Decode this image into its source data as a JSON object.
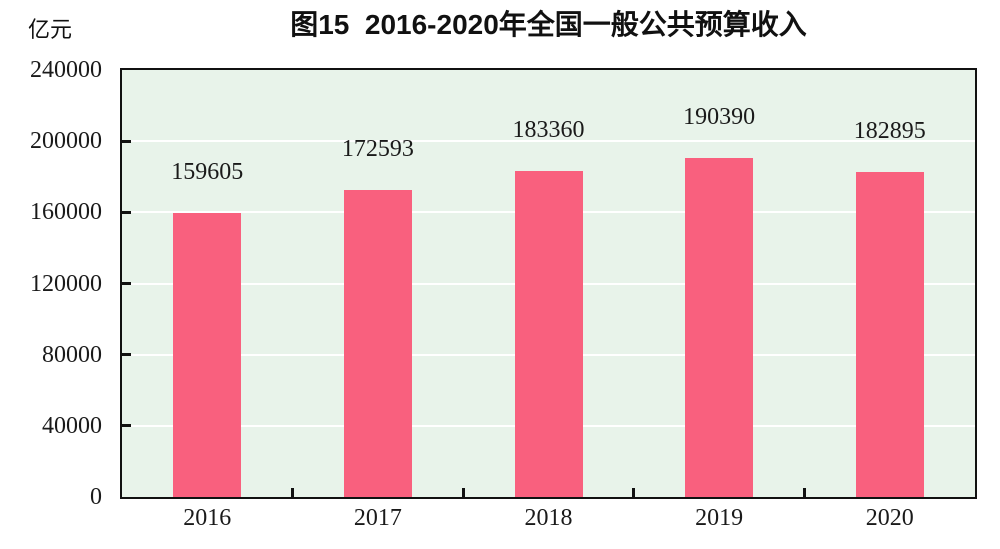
{
  "figure": {
    "title": "图15  2016-2020年全国一般公共预算收入",
    "unit_label": "亿元"
  },
  "chart_data": {
    "type": "bar",
    "title": "图15 2016-2020年全国一般公共预算收入",
    "unit": "亿元",
    "categories": [
      "2016",
      "2017",
      "2018",
      "2019",
      "2020"
    ],
    "values": [
      159605,
      172593,
      183360,
      190390,
      182895
    ],
    "value_labels_shown": true,
    "ylim": [
      0,
      240000
    ],
    "ytick_interval": 40000,
    "yticks": [
      0,
      40000,
      80000,
      120000,
      160000,
      200000,
      240000
    ],
    "xlabel": "",
    "ylabel": "亿元",
    "grid": true,
    "legend_position": "none",
    "colors": {
      "bar": "#f9607e",
      "plot_background": "#e8f3ea",
      "gridline": "#ffffff",
      "axis": "#111111",
      "text": "#1a1a1a"
    }
  }
}
